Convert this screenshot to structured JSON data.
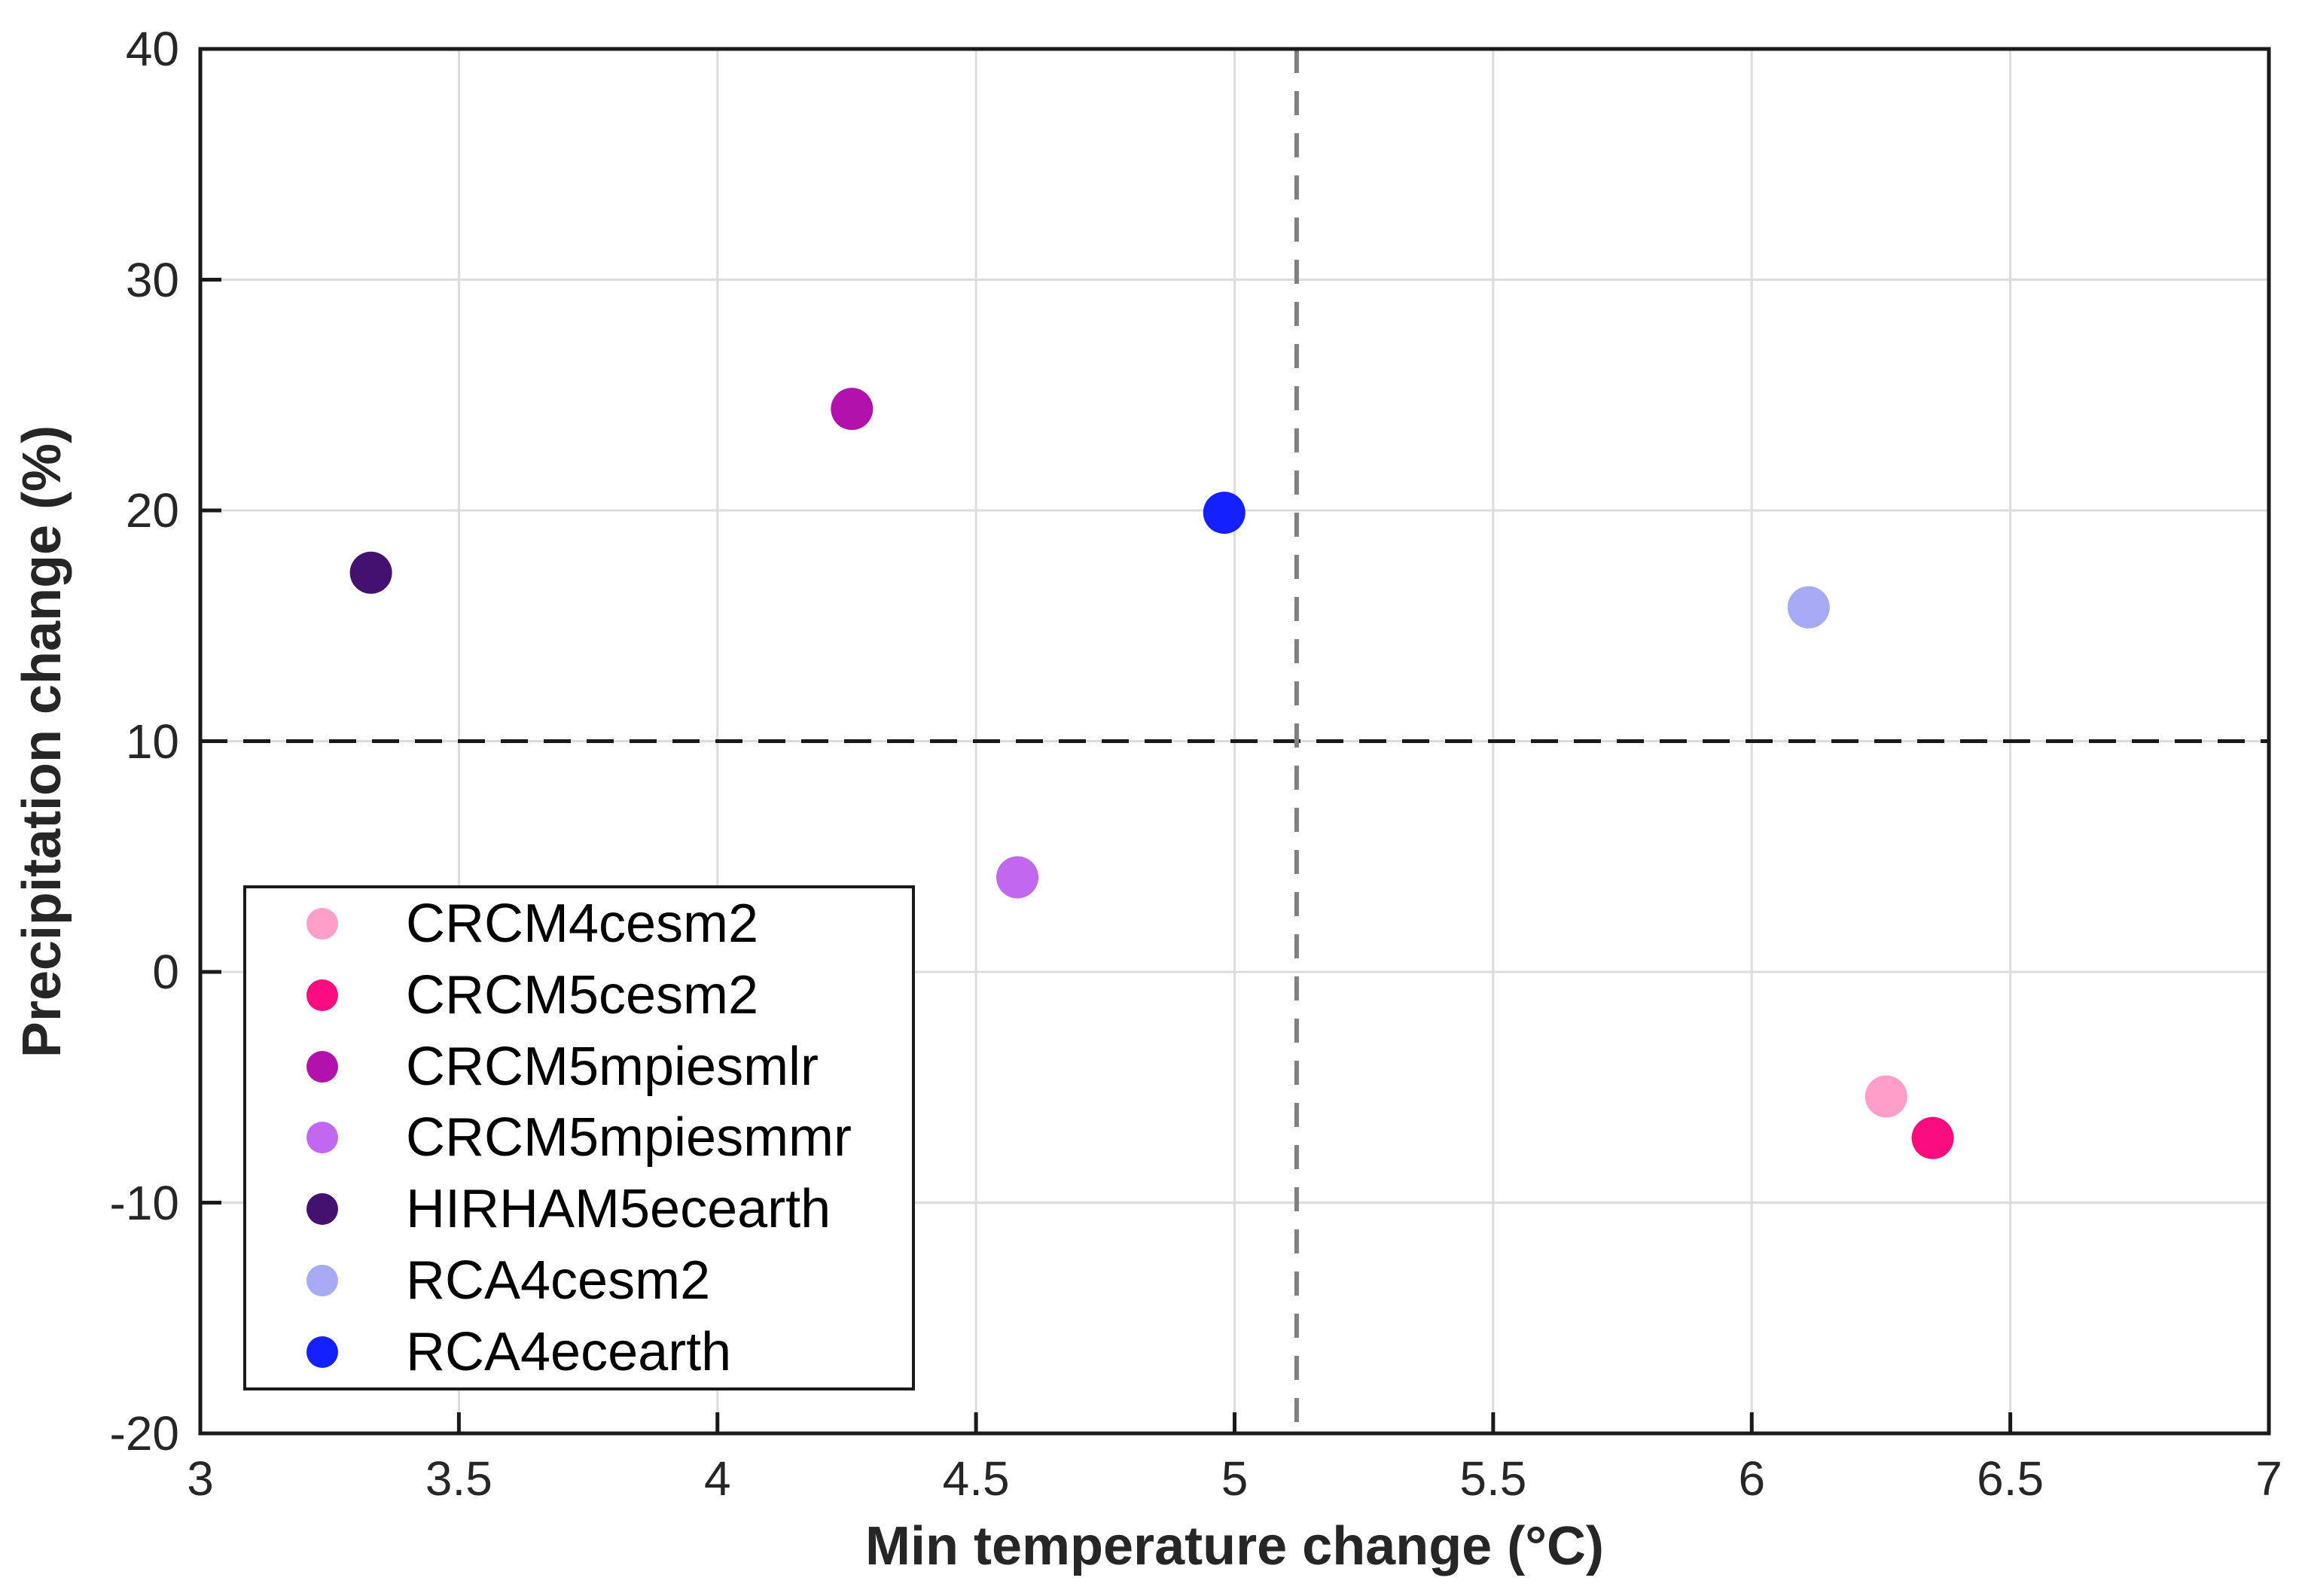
{
  "figure": {
    "background": "#ffffff",
    "spine_color": "#1a1a1a",
    "gridline_color": "#dcdcdc",
    "tick_label_color": "#262626"
  },
  "chart_data": {
    "type": "scatter",
    "title": "",
    "xlabel": "Min temperature change (°C)",
    "ylabel": "Precipitation change (%)",
    "xlim": [
      3,
      7
    ],
    "ylim": [
      -20,
      40
    ],
    "x_ticks": [
      3,
      3.5,
      4,
      4.5,
      5,
      5.5,
      6,
      6.5,
      7
    ],
    "x_tick_labels": [
      "3",
      "3.5",
      "4",
      "4.5",
      "5",
      "5.5",
      "6",
      "6.5",
      "7"
    ],
    "y_ticks": [
      40,
      30,
      20,
      10,
      0,
      -10,
      -20
    ],
    "y_tick_labels": [
      "40",
      "30",
      "20",
      "10",
      "0",
      "-10",
      "-20"
    ],
    "grid": true,
    "legend_position": "lower-left-inside",
    "marker": "filled-circle",
    "series": [
      {
        "name": "CRCM4cesm2",
        "color": "#FF9EC9",
        "points": [
          [
            6.26,
            -5.4
          ]
        ]
      },
      {
        "name": "CRCM5cesm2",
        "color": "#FA0C7E",
        "points": [
          [
            6.35,
            -7.2
          ]
        ]
      },
      {
        "name": "CRCM5mpiesmlr",
        "color": "#B112AB",
        "points": [
          [
            4.26,
            24.4
          ]
        ]
      },
      {
        "name": "CRCM5mpiesmmr",
        "color": "#C267F0",
        "points": [
          [
            4.58,
            4.1
          ]
        ]
      },
      {
        "name": "HIRHAM5ecearth",
        "color": "#431270",
        "points": [
          [
            3.33,
            17.3
          ]
        ]
      },
      {
        "name": "RCA4cesm2",
        "color": "#A5AAF2",
        "points": [
          [
            6.11,
            15.8
          ]
        ]
      },
      {
        "name": "RCA4ecearth",
        "color": "#1420FD",
        "points": [
          [
            4.98,
            19.9
          ]
        ]
      }
    ],
    "reference_lines": [
      {
        "orientation": "horizontal",
        "value": 10,
        "style": "dashed",
        "color": "#1a1a1a",
        "width": 5,
        "dash": "36 21"
      },
      {
        "orientation": "vertical",
        "value": 5.12,
        "style": "dashed",
        "color": "#7f7f7f",
        "width": 6,
        "dash": "32 24"
      }
    ]
  }
}
